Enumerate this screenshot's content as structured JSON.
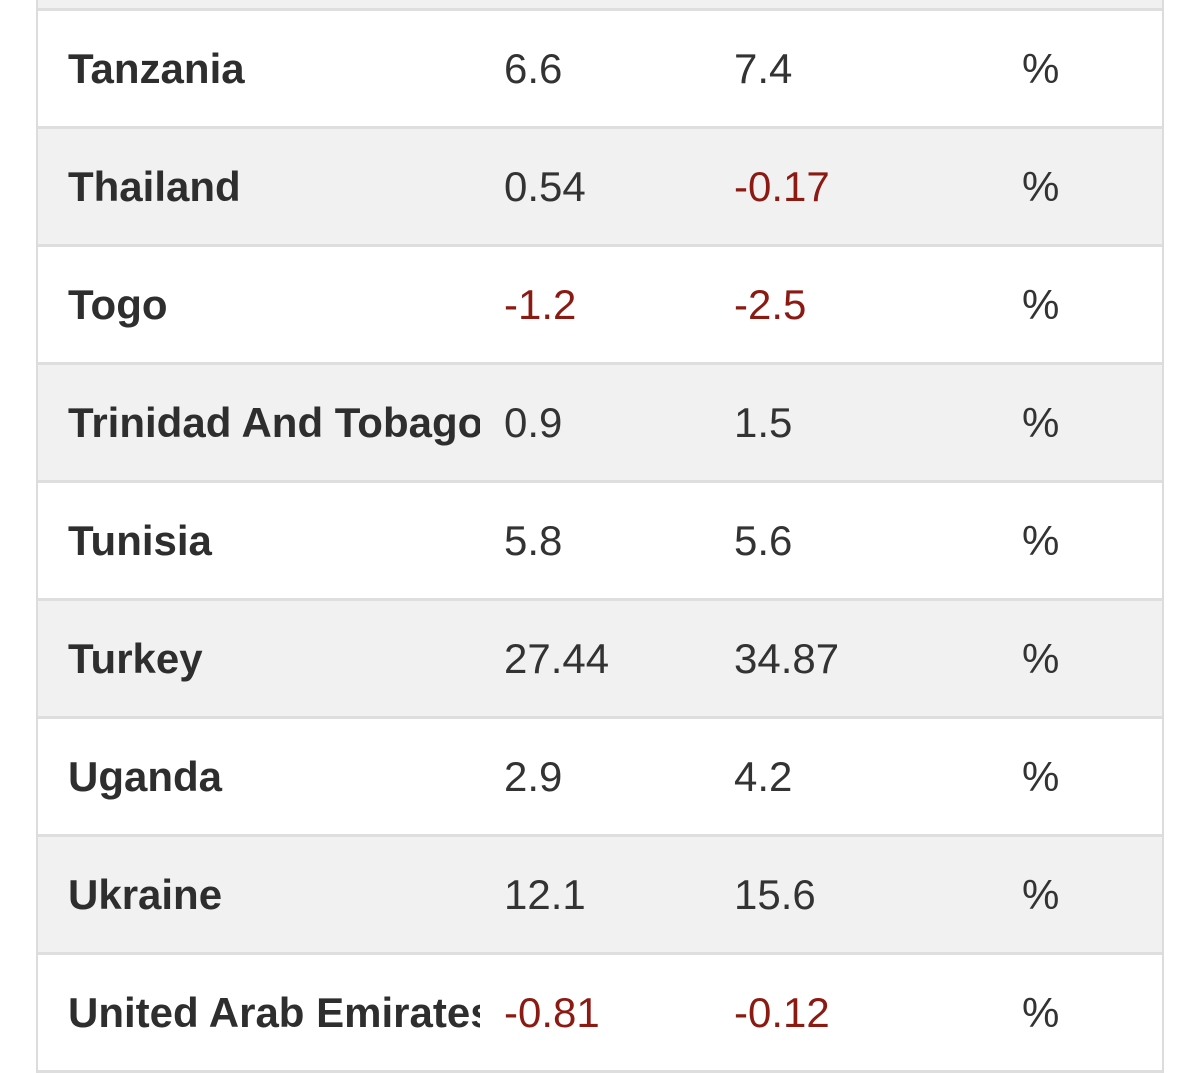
{
  "table": {
    "rows": [
      {
        "country": "",
        "value1": "",
        "value2": "",
        "unit": "",
        "neg1": false,
        "neg2": false
      },
      {
        "country": "Tanzania",
        "value1": "6.6",
        "value2": "7.4",
        "unit": "%",
        "neg1": false,
        "neg2": false
      },
      {
        "country": "Thailand",
        "value1": "0.54",
        "value2": "-0.17",
        "unit": "%",
        "neg1": false,
        "neg2": true
      },
      {
        "country": "Togo",
        "value1": "-1.2",
        "value2": "-2.5",
        "unit": "%",
        "neg1": true,
        "neg2": true
      },
      {
        "country": "Trinidad And Tobago",
        "value1": "0.9",
        "value2": "1.5",
        "unit": "%",
        "neg1": false,
        "neg2": false
      },
      {
        "country": "Tunisia",
        "value1": "5.8",
        "value2": "5.6",
        "unit": "%",
        "neg1": false,
        "neg2": false
      },
      {
        "country": "Turkey",
        "value1": "27.44",
        "value2": "34.87",
        "unit": "%",
        "neg1": false,
        "neg2": false
      },
      {
        "country": "Uganda",
        "value1": "2.9",
        "value2": "4.2",
        "unit": "%",
        "neg1": false,
        "neg2": false
      },
      {
        "country": "Ukraine",
        "value1": "12.1",
        "value2": "15.6",
        "unit": "%",
        "neg1": false,
        "neg2": false
      },
      {
        "country": "United Arab Emirates",
        "value1": "-0.81",
        "value2": "-0.12",
        "unit": "%",
        "neg1": true,
        "neg2": true
      }
    ]
  },
  "colors": {
    "negative": "#8b1a13",
    "text": "#333333",
    "row_alt_bg": "#f1f1f1",
    "row_bg": "#ffffff",
    "divider": "#dedede"
  }
}
